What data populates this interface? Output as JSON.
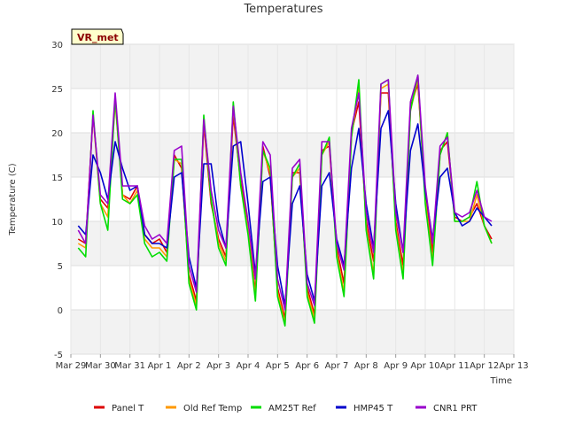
{
  "chart_data": {
    "type": "line",
    "title": "Temperatures",
    "xlabel": "Time",
    "ylabel": "Temperature (C)",
    "ylim": [
      -5,
      30
    ],
    "xlim": [
      "2024-03-29",
      "2024-04-13"
    ],
    "x_ticks": [
      "Mar 29",
      "Mar 30",
      "Mar 31",
      "Apr 1",
      "Apr 2",
      "Apr 3",
      "Apr 4",
      "Apr 5",
      "Apr 6",
      "Apr 7",
      "Apr 8",
      "Apr 9",
      "Apr 10",
      "Apr 11",
      "Apr 12",
      "Apr 13"
    ],
    "y_ticks": [
      -5,
      0,
      5,
      10,
      15,
      20,
      25,
      30
    ],
    "grid": true,
    "legend_position": "bottom",
    "annotation": "VR_met",
    "x": [
      "2024-03-29 06:00",
      "2024-03-29 12:00",
      "2024-03-29 18:00",
      "2024-03-30 00:00",
      "2024-03-30 06:00",
      "2024-03-30 12:00",
      "2024-03-30 18:00",
      "2024-03-31 00:00",
      "2024-03-31 06:00",
      "2024-03-31 12:00",
      "2024-03-31 18:00",
      "2024-04-01 00:00",
      "2024-04-01 06:00",
      "2024-04-01 12:00",
      "2024-04-01 18:00",
      "2024-04-02 00:00",
      "2024-04-02 06:00",
      "2024-04-02 12:00",
      "2024-04-02 18:00",
      "2024-04-03 00:00",
      "2024-04-03 06:00",
      "2024-04-03 12:00",
      "2024-04-03 18:00",
      "2024-04-04 00:00",
      "2024-04-04 06:00",
      "2024-04-04 12:00",
      "2024-04-04 18:00",
      "2024-04-05 00:00",
      "2024-04-05 06:00",
      "2024-04-05 12:00",
      "2024-04-05 18:00",
      "2024-04-06 00:00",
      "2024-04-06 06:00",
      "2024-04-06 12:00",
      "2024-04-06 18:00",
      "2024-04-07 00:00",
      "2024-04-07 06:00",
      "2024-04-07 12:00",
      "2024-04-07 18:00",
      "2024-04-08 00:00",
      "2024-04-08 06:00",
      "2024-04-08 12:00",
      "2024-04-08 18:00",
      "2024-04-09 00:00",
      "2024-04-09 06:00",
      "2024-04-09 12:00",
      "2024-04-09 18:00",
      "2024-04-10 00:00",
      "2024-04-10 06:00",
      "2024-04-10 12:00",
      "2024-04-10 18:00",
      "2024-04-11 00:00",
      "2024-04-11 06:00",
      "2024-04-11 12:00",
      "2024-04-11 18:00",
      "2024-04-12 00:00",
      "2024-04-12 06:00"
    ],
    "series": [
      {
        "name": "Panel T",
        "color": "#dd0000",
        "values": [
          8.0,
          7.5,
          22.0,
          12.5,
          11.5,
          24.0,
          13.0,
          12.5,
          14.0,
          8.5,
          7.5,
          8.0,
          6.5,
          17.5,
          16.0,
          4.0,
          1.0,
          21.0,
          12.0,
          8.0,
          6.0,
          22.0,
          14.5,
          9.5,
          2.0,
          18.5,
          15.0,
          2.5,
          -1.0,
          15.5,
          15.5,
          2.5,
          -0.5,
          18.0,
          18.5,
          7.0,
          3.0,
          20.0,
          23.5,
          10.0,
          5.5,
          24.5,
          24.5,
          10.0,
          5.0,
          23.0,
          25.5,
          13.0,
          6.5,
          18.0,
          19.0,
          10.5,
          10.0,
          10.5,
          12.0,
          9.5,
          8.0
        ]
      },
      {
        "name": "Old Ref Temp",
        "color": "#ff9900",
        "values": [
          7.5,
          7.0,
          22.0,
          12.0,
          10.5,
          23.5,
          13.0,
          12.0,
          13.5,
          8.0,
          7.0,
          7.0,
          6.0,
          17.0,
          16.5,
          3.5,
          0.5,
          21.5,
          12.5,
          7.5,
          5.5,
          23.0,
          14.0,
          9.0,
          1.5,
          18.0,
          15.5,
          2.0,
          -1.5,
          15.0,
          16.0,
          2.0,
          -1.0,
          17.5,
          19.0,
          6.5,
          2.0,
          19.5,
          25.0,
          9.5,
          4.0,
          25.0,
          25.5,
          9.5,
          4.0,
          22.5,
          26.0,
          12.5,
          5.5,
          17.5,
          20.0,
          10.0,
          10.0,
          10.0,
          13.0,
          9.5,
          7.5
        ]
      },
      {
        "name": "AM25T Ref",
        "color": "#00dd00",
        "values": [
          7.0,
          6.0,
          22.5,
          12.0,
          9.0,
          24.0,
          12.5,
          12.0,
          13.0,
          7.5,
          6.0,
          6.5,
          5.5,
          17.0,
          17.0,
          3.0,
          0.0,
          22.0,
          12.5,
          7.0,
          5.0,
          23.5,
          14.0,
          8.5,
          1.0,
          18.0,
          16.0,
          1.5,
          -1.8,
          15.0,
          16.5,
          1.5,
          -1.5,
          17.5,
          19.5,
          6.0,
          1.5,
          19.5,
          26.0,
          9.0,
          3.5,
          25.5,
          26.0,
          9.0,
          3.5,
          22.5,
          26.5,
          12.0,
          5.0,
          17.5,
          20.0,
          10.0,
          10.0,
          10.5,
          14.5,
          9.5,
          7.5
        ]
      },
      {
        "name": "HMP45 T",
        "color": "#0000cc",
        "values": [
          9.5,
          8.5,
          17.5,
          15.5,
          12.5,
          19.0,
          16.0,
          13.5,
          14.0,
          8.5,
          7.5,
          7.5,
          7.0,
          15.0,
          15.5,
          6.0,
          2.5,
          16.5,
          16.5,
          10.0,
          7.0,
          18.5,
          19.0,
          12.0,
          4.0,
          14.5,
          15.0,
          5.0,
          0.5,
          12.0,
          14.0,
          4.0,
          1.0,
          14.0,
          15.5,
          8.0,
          5.0,
          16.0,
          20.5,
          12.0,
          7.0,
          20.5,
          22.5,
          12.0,
          6.5,
          18.0,
          21.0,
          13.5,
          8.0,
          15.0,
          16.0,
          11.0,
          9.5,
          10.0,
          11.5,
          10.5,
          9.5
        ]
      },
      {
        "name": "CNR1 PRT",
        "color": "#9900cc",
        "values": [
          9.0,
          7.5,
          22.0,
          13.0,
          12.0,
          24.5,
          14.0,
          14.0,
          14.0,
          9.5,
          8.0,
          8.5,
          7.5,
          18.0,
          18.5,
          5.0,
          2.0,
          21.5,
          13.5,
          9.0,
          7.0,
          23.0,
          15.5,
          10.0,
          3.5,
          19.0,
          17.5,
          3.5,
          0.0,
          16.0,
          17.0,
          3.0,
          0.5,
          19.0,
          19.0,
          7.5,
          4.5,
          20.5,
          24.5,
          11.0,
          6.5,
          25.5,
          26.0,
          11.0,
          6.5,
          23.5,
          26.5,
          14.0,
          7.5,
          18.5,
          19.5,
          11.0,
          10.5,
          11.0,
          13.5,
          10.5,
          10.0
        ]
      }
    ]
  }
}
